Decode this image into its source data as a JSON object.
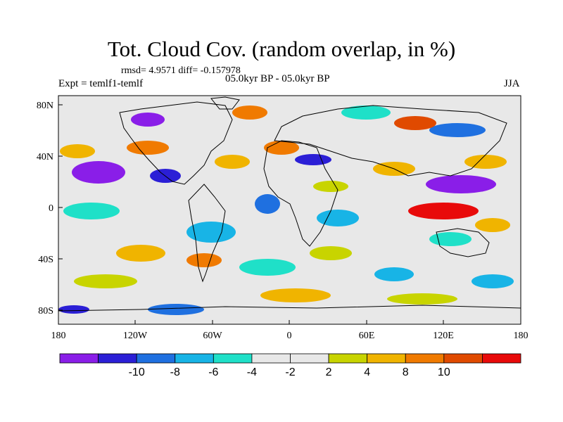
{
  "title": "Tot. Cloud Cov. (random overlap, in %)",
  "stats_line": "rmsd= 4.9571 diff= -0.157978",
  "experiment_line": "Expt = temlf1-temlf",
  "period_line": "05.0kyr BP - 05.0kyr BP",
  "season": "JJA",
  "lat_ticks": [
    "80N",
    "40N",
    "0",
    "40S",
    "80S"
  ],
  "lon_ticks": [
    "180",
    "120W",
    "60W",
    "0",
    "60E",
    "120E",
    "180"
  ],
  "colorbar": {
    "colors": [
      "#8a1ee8",
      "#2b1fd6",
      "#1f70e0",
      "#18b4e6",
      "#1fe0c8",
      "#e8e8e8",
      "#e8e8e8",
      "#c8d400",
      "#f0b400",
      "#f07a00",
      "#e04a00",
      "#e80a0a"
    ],
    "labels": [
      "-10",
      "-8",
      "-6",
      "-4",
      "-2",
      "2",
      "4",
      "8",
      "10"
    ]
  },
  "colors": {
    "land_outline": "#000000",
    "background_field": "#e8e8e8"
  }
}
